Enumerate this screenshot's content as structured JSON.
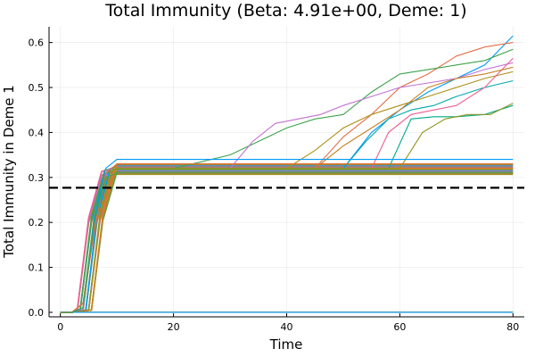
{
  "chart_data": {
    "type": "line",
    "title": "Total Immunity (Beta: 4.91e+00, Deme: 1)",
    "xlabel": "Time",
    "ylabel": "Total Immunity in Deme 1",
    "xlim": [
      -2,
      82
    ],
    "ylim": [
      -0.01,
      0.635
    ],
    "xticks": [
      0,
      20,
      40,
      60,
      80
    ],
    "yticks": [
      0.0,
      0.1,
      0.2,
      0.3,
      0.4,
      0.5,
      0.6
    ],
    "xtick_labels": [
      "0",
      "20",
      "40",
      "60",
      "80"
    ],
    "ytick_labels": [
      "0.0",
      "0.1",
      "0.2",
      "0.3",
      "0.4",
      "0.5",
      "0.6"
    ],
    "grid": true,
    "legend": "none",
    "reference_line": {
      "y": 0.277,
      "style": "dashed",
      "color": "#000000"
    },
    "palette": [
      "#009AFA",
      "#E36F47",
      "#3EA44E",
      "#C371D2",
      "#AC8E18",
      "#00AAAE",
      "#ED5E93",
      "#C68225",
      "#00A98D",
      "#8E971D"
    ],
    "plateau_band": {
      "ymin": 0.307,
      "ymax": 0.33
    },
    "flat_series_count": 6,
    "series": [
      {
        "x": [
          0,
          2,
          4,
          6,
          8,
          10,
          20,
          50,
          55,
          60,
          65,
          70,
          75,
          80
        ],
        "y": [
          0,
          0,
          0.02,
          0.2,
          0.31,
          0.32,
          0.32,
          0.32,
          0.4,
          0.45,
          0.49,
          0.52,
          0.55,
          0.615
        ]
      },
      {
        "x": [
          0,
          2,
          4,
          6,
          8,
          10,
          20,
          45,
          50,
          55,
          60,
          65,
          70,
          75,
          80
        ],
        "y": [
          0,
          0,
          0.01,
          0.21,
          0.31,
          0.32,
          0.32,
          0.32,
          0.39,
          0.44,
          0.5,
          0.53,
          0.57,
          0.59,
          0.6
        ]
      },
      {
        "x": [
          0,
          2,
          4,
          6,
          8,
          10,
          20,
          30,
          35,
          40,
          45,
          50,
          55,
          60,
          65,
          70,
          75,
          80
        ],
        "y": [
          0,
          0,
          0.02,
          0.19,
          0.31,
          0.32,
          0.32,
          0.35,
          0.38,
          0.41,
          0.43,
          0.44,
          0.49,
          0.53,
          0.54,
          0.55,
          0.56,
          0.585
        ]
      },
      {
        "x": [
          0,
          2,
          4,
          6,
          8,
          10,
          20,
          30,
          34,
          38,
          42,
          46,
          50,
          55,
          60,
          65,
          70,
          75,
          80
        ],
        "y": [
          0,
          0,
          0.01,
          0.2,
          0.31,
          0.32,
          0.32,
          0.32,
          0.38,
          0.42,
          0.43,
          0.44,
          0.46,
          0.48,
          0.5,
          0.51,
          0.52,
          0.54,
          0.555
        ]
      },
      {
        "x": [
          0,
          2,
          4,
          6,
          8,
          10,
          20,
          40,
          45,
          50,
          55,
          60,
          65,
          70,
          75,
          80
        ],
        "y": [
          0,
          0,
          0.02,
          0.18,
          0.31,
          0.32,
          0.32,
          0.32,
          0.36,
          0.41,
          0.44,
          0.46,
          0.48,
          0.5,
          0.52,
          0.535
        ]
      },
      {
        "x": [
          0,
          2,
          4,
          6,
          8,
          10,
          20,
          50,
          54,
          58,
          62,
          66,
          70,
          75,
          80
        ],
        "y": [
          0,
          0,
          0.01,
          0.2,
          0.31,
          0.32,
          0.32,
          0.32,
          0.38,
          0.43,
          0.45,
          0.46,
          0.48,
          0.5,
          0.515
        ]
      },
      {
        "x": [
          0,
          2,
          4,
          6,
          8,
          10,
          20,
          55,
          58,
          62,
          66,
          70,
          75,
          80
        ],
        "y": [
          0,
          0,
          0.01,
          0.19,
          0.31,
          0.32,
          0.32,
          0.32,
          0.4,
          0.44,
          0.45,
          0.46,
          0.5,
          0.565
        ]
      },
      {
        "x": [
          0,
          2,
          4,
          6,
          8,
          10,
          20,
          45,
          50,
          55,
          60,
          65,
          70,
          75,
          80
        ],
        "y": [
          0,
          0,
          0.02,
          0.21,
          0.31,
          0.32,
          0.32,
          0.32,
          0.37,
          0.41,
          0.45,
          0.5,
          0.52,
          0.53,
          0.545
        ]
      },
      {
        "x": [
          0,
          2,
          4,
          6,
          8,
          10,
          20,
          58,
          62,
          66,
          70,
          75,
          80
        ],
        "y": [
          0,
          0,
          0.01,
          0.2,
          0.31,
          0.32,
          0.32,
          0.32,
          0.43,
          0.435,
          0.435,
          0.44,
          0.46
        ]
      },
      {
        "x": [
          0,
          2,
          4,
          6,
          8,
          10,
          20,
          60,
          64,
          68,
          72,
          76,
          80
        ],
        "y": [
          0,
          0,
          0.01,
          0.22,
          0.31,
          0.32,
          0.32,
          0.32,
          0.4,
          0.43,
          0.44,
          0.44,
          0.465
        ]
      },
      {
        "x": [
          0,
          2,
          4,
          6,
          8,
          10,
          20,
          80
        ],
        "y": [
          0,
          0,
          0.01,
          0.21,
          0.32,
          0.34,
          0.34,
          0.34
        ]
      },
      {
        "x": [
          0,
          2,
          4,
          6,
          8,
          10,
          20,
          80
        ],
        "y": [
          0,
          0,
          0.02,
          0.18,
          0.31,
          0.33,
          0.33,
          0.33
        ]
      },
      {
        "x": [
          0,
          2,
          4,
          6,
          8,
          10,
          20,
          80
        ],
        "y": [
          0,
          0,
          0.01,
          0.2,
          0.3,
          0.31,
          0.31,
          0.31
        ]
      }
    ]
  }
}
